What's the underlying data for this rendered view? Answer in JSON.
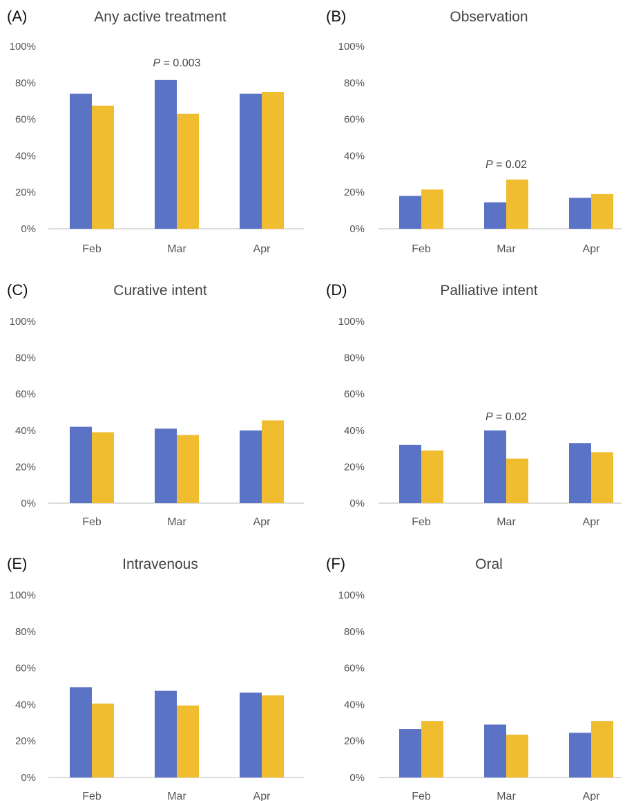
{
  "colors": {
    "series_1": "#5b73c5",
    "series_2": "#f0bd30"
  },
  "chart_data": [
    {
      "type": "bar",
      "panel": "(A)",
      "title": "Any active  treatment",
      "categories": [
        "Feb",
        "Mar",
        "Apr"
      ],
      "ylim": [
        0,
        100
      ],
      "yticks": [
        "0%",
        "20%",
        "40%",
        "60%",
        "80%",
        "100%"
      ],
      "series": [
        {
          "values": [
            74,
            81.5,
            74
          ]
        },
        {
          "values": [
            67.5,
            63,
            75
          ]
        }
      ],
      "annotation": {
        "category": "Mar",
        "italic": "P",
        "text": " = 0.003"
      }
    },
    {
      "type": "bar",
      "panel": "(B)",
      "title": "Observation",
      "categories": [
        "Feb",
        "Mar",
        "Apr"
      ],
      "ylim": [
        0,
        100
      ],
      "yticks": [
        "0%",
        "20%",
        "40%",
        "60%",
        "80%",
        "100%"
      ],
      "series": [
        {
          "values": [
            18,
            14.5,
            17
          ]
        },
        {
          "values": [
            21.5,
            27,
            19
          ]
        }
      ],
      "annotation": {
        "category": "Mar",
        "italic": "P",
        "text": " = 0.02"
      }
    },
    {
      "type": "bar",
      "panel": "(C)",
      "title": "Curative intent",
      "categories": [
        "Feb",
        "Mar",
        "Apr"
      ],
      "ylim": [
        0,
        100
      ],
      "yticks": [
        "0%",
        "20%",
        "40%",
        "60%",
        "80%",
        "100%"
      ],
      "series": [
        {
          "values": [
            42,
            41,
            40
          ]
        },
        {
          "values": [
            39,
            37.5,
            45.5
          ]
        }
      ]
    },
    {
      "type": "bar",
      "panel": "(D)",
      "title": "Palliative intent",
      "categories": [
        "Feb",
        "Mar",
        "Apr"
      ],
      "ylim": [
        0,
        100
      ],
      "yticks": [
        "0%",
        "20%",
        "40%",
        "60%",
        "80%",
        "100%"
      ],
      "series": [
        {
          "values": [
            32,
            40,
            33
          ]
        },
        {
          "values": [
            29,
            24.5,
            28
          ]
        }
      ],
      "annotation": {
        "category": "Mar",
        "italic": "P",
        "text": " = 0.02"
      }
    },
    {
      "type": "bar",
      "panel": "(E)",
      "title": "Intravenous",
      "categories": [
        "Feb",
        "Mar",
        "Apr"
      ],
      "ylim": [
        0,
        100
      ],
      "yticks": [
        "0%",
        "20%",
        "40%",
        "60%",
        "80%",
        "100%"
      ],
      "series": [
        {
          "values": [
            49.5,
            47.5,
            46.5
          ]
        },
        {
          "values": [
            40.5,
            39.5,
            45
          ]
        }
      ]
    },
    {
      "type": "bar",
      "panel": "(F)",
      "title": "Oral",
      "categories": [
        "Feb",
        "Mar",
        "Apr"
      ],
      "ylim": [
        0,
        100
      ],
      "yticks": [
        "0%",
        "20%",
        "40%",
        "60%",
        "80%",
        "100%"
      ],
      "series": [
        {
          "values": [
            26.5,
            29,
            24.5
          ]
        },
        {
          "values": [
            31,
            23.5,
            31
          ]
        }
      ]
    }
  ]
}
